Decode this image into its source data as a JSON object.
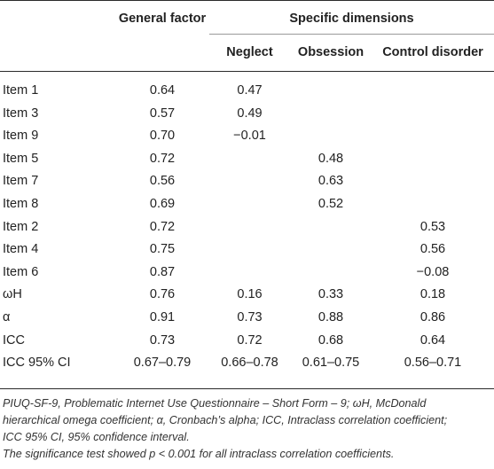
{
  "header": {
    "general": "General factor",
    "specific": "Specific dimensions",
    "sub": [
      "Neglect",
      "Obsession",
      "Control disorder"
    ]
  },
  "rows": [
    {
      "label": "Item 1",
      "values": [
        "0.64",
        "0.47",
        "",
        ""
      ]
    },
    {
      "label": "Item 3",
      "values": [
        "0.57",
        "0.49",
        "",
        ""
      ]
    },
    {
      "label": "Item 9",
      "values": [
        "0.70",
        "−0.01",
        "",
        ""
      ]
    },
    {
      "label": "Item 5",
      "values": [
        "0.72",
        "",
        "0.48",
        ""
      ]
    },
    {
      "label": "Item 7",
      "values": [
        "0.56",
        "",
        "0.63",
        ""
      ]
    },
    {
      "label": "Item 8",
      "values": [
        "0.69",
        "",
        "0.52",
        ""
      ]
    },
    {
      "label": "Item 2",
      "values": [
        "0.72",
        "",
        "",
        "0.53"
      ]
    },
    {
      "label": "Item 4",
      "values": [
        "0.75",
        "",
        "",
        "0.56"
      ]
    },
    {
      "label": "Item 6",
      "values": [
        "0.87",
        "",
        "",
        "−0.08"
      ]
    },
    {
      "label": "ωH",
      "values": [
        "0.76",
        "0.16",
        "0.33",
        "0.18"
      ]
    },
    {
      "label": "α",
      "values": [
        "0.91",
        "0.73",
        "0.88",
        "0.86"
      ]
    },
    {
      "label": "ICC",
      "values": [
        "0.73",
        "0.72",
        "0.68",
        "0.64"
      ]
    },
    {
      "label": "ICC 95% CI",
      "values": [
        "0.67–0.79",
        "0.66–0.78",
        "0.61–0.75",
        "0.56–0.71"
      ]
    }
  ],
  "footnote": {
    "line1": "PIUQ-SF-9, Problematic Internet Use Questionnaire – Short Form – 9; ωH, McDonald",
    "line2": "hierarchical omega coefficient; α, Cronbach’s alpha; ICC, Intraclass correlation coefficient;",
    "line3": "ICC 95% CI, 95% confidence interval.",
    "line4": "The significance test showed p < 0.001 for all intraclass correlation coefficients."
  }
}
